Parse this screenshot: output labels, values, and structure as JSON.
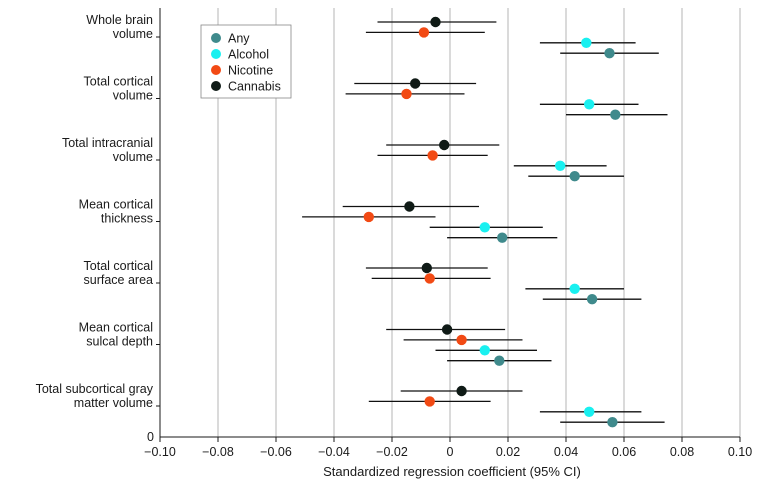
{
  "chart_data": {
    "type": "forest",
    "xlabel": "Standardized regression coefficient (95% CI)",
    "ylabel": "",
    "xlim": [
      -0.1,
      0.1
    ],
    "xticks": [
      -0.1,
      -0.08,
      -0.06,
      -0.04,
      -0.02,
      0,
      0.02,
      0.04,
      0.06,
      0.08,
      0.1
    ],
    "xtick_labels": [
      "−0.10",
      "−0.08",
      "−0.06",
      "−0.04",
      "−0.02",
      "0",
      "0.02",
      "0.04",
      "0.06",
      "0.08",
      "0.10"
    ],
    "y_zero_label": "0",
    "grid": "vertical",
    "legend_position": "top-left",
    "series": [
      {
        "name": "Any",
        "color": "#3f8a8c"
      },
      {
        "name": "Alcohol",
        "color": "#19f0f0"
      },
      {
        "name": "Nicotine",
        "color": "#f24a14"
      },
      {
        "name": "Cannabis",
        "color": "#0f1a16"
      }
    ],
    "groups": [
      {
        "label": [
          "Whole brain",
          "volume"
        ],
        "points": [
          {
            "series": "Cannabis",
            "est": -0.005,
            "lo": -0.025,
            "hi": 0.016
          },
          {
            "series": "Nicotine",
            "est": -0.009,
            "lo": -0.029,
            "hi": 0.012
          },
          {
            "series": "Alcohol",
            "est": 0.047,
            "lo": 0.031,
            "hi": 0.064
          },
          {
            "series": "Any",
            "est": 0.055,
            "lo": 0.038,
            "hi": 0.072
          }
        ]
      },
      {
        "label": [
          "Total cortical",
          "volume"
        ],
        "points": [
          {
            "series": "Cannabis",
            "est": -0.012,
            "lo": -0.033,
            "hi": 0.009
          },
          {
            "series": "Nicotine",
            "est": -0.015,
            "lo": -0.036,
            "hi": 0.005
          },
          {
            "series": "Alcohol",
            "est": 0.048,
            "lo": 0.031,
            "hi": 0.065
          },
          {
            "series": "Any",
            "est": 0.057,
            "lo": 0.04,
            "hi": 0.075
          }
        ]
      },
      {
        "label": [
          "Total intracranial",
          "volume"
        ],
        "points": [
          {
            "series": "Cannabis",
            "est": -0.002,
            "lo": -0.022,
            "hi": 0.017
          },
          {
            "series": "Nicotine",
            "est": -0.006,
            "lo": -0.025,
            "hi": 0.013
          },
          {
            "series": "Alcohol",
            "est": 0.038,
            "lo": 0.022,
            "hi": 0.054
          },
          {
            "series": "Any",
            "est": 0.043,
            "lo": 0.027,
            "hi": 0.06
          }
        ]
      },
      {
        "label": [
          "Mean cortical",
          "thickness"
        ],
        "points": [
          {
            "series": "Cannabis",
            "est": -0.014,
            "lo": -0.037,
            "hi": 0.01
          },
          {
            "series": "Nicotine",
            "est": -0.028,
            "lo": -0.051,
            "hi": -0.005
          },
          {
            "series": "Alcohol",
            "est": 0.012,
            "lo": -0.007,
            "hi": 0.032
          },
          {
            "series": "Any",
            "est": 0.018,
            "lo": -0.001,
            "hi": 0.037
          }
        ]
      },
      {
        "label": [
          "Total cortical",
          "surface area"
        ],
        "points": [
          {
            "series": "Cannabis",
            "est": -0.008,
            "lo": -0.029,
            "hi": 0.013
          },
          {
            "series": "Nicotine",
            "est": -0.007,
            "lo": -0.027,
            "hi": 0.014
          },
          {
            "series": "Alcohol",
            "est": 0.043,
            "lo": 0.026,
            "hi": 0.06
          },
          {
            "series": "Any",
            "est": 0.049,
            "lo": 0.032,
            "hi": 0.066
          }
        ]
      },
      {
        "label": [
          "Mean cortical",
          "sulcal depth"
        ],
        "points": [
          {
            "series": "Cannabis",
            "est": -0.001,
            "lo": -0.022,
            "hi": 0.019
          },
          {
            "series": "Nicotine",
            "est": 0.004,
            "lo": -0.016,
            "hi": 0.025
          },
          {
            "series": "Alcohol",
            "est": 0.012,
            "lo": -0.005,
            "hi": 0.03
          },
          {
            "series": "Any",
            "est": 0.017,
            "lo": -0.001,
            "hi": 0.035
          }
        ]
      },
      {
        "label": [
          "Total subcortical gray",
          "matter volume"
        ],
        "points": [
          {
            "series": "Cannabis",
            "est": 0.004,
            "lo": -0.017,
            "hi": 0.025
          },
          {
            "series": "Nicotine",
            "est": -0.007,
            "lo": -0.028,
            "hi": 0.014
          },
          {
            "series": "Alcohol",
            "est": 0.048,
            "lo": 0.031,
            "hi": 0.066
          },
          {
            "series": "Any",
            "est": 0.056,
            "lo": 0.038,
            "hi": 0.074
          }
        ]
      }
    ]
  }
}
